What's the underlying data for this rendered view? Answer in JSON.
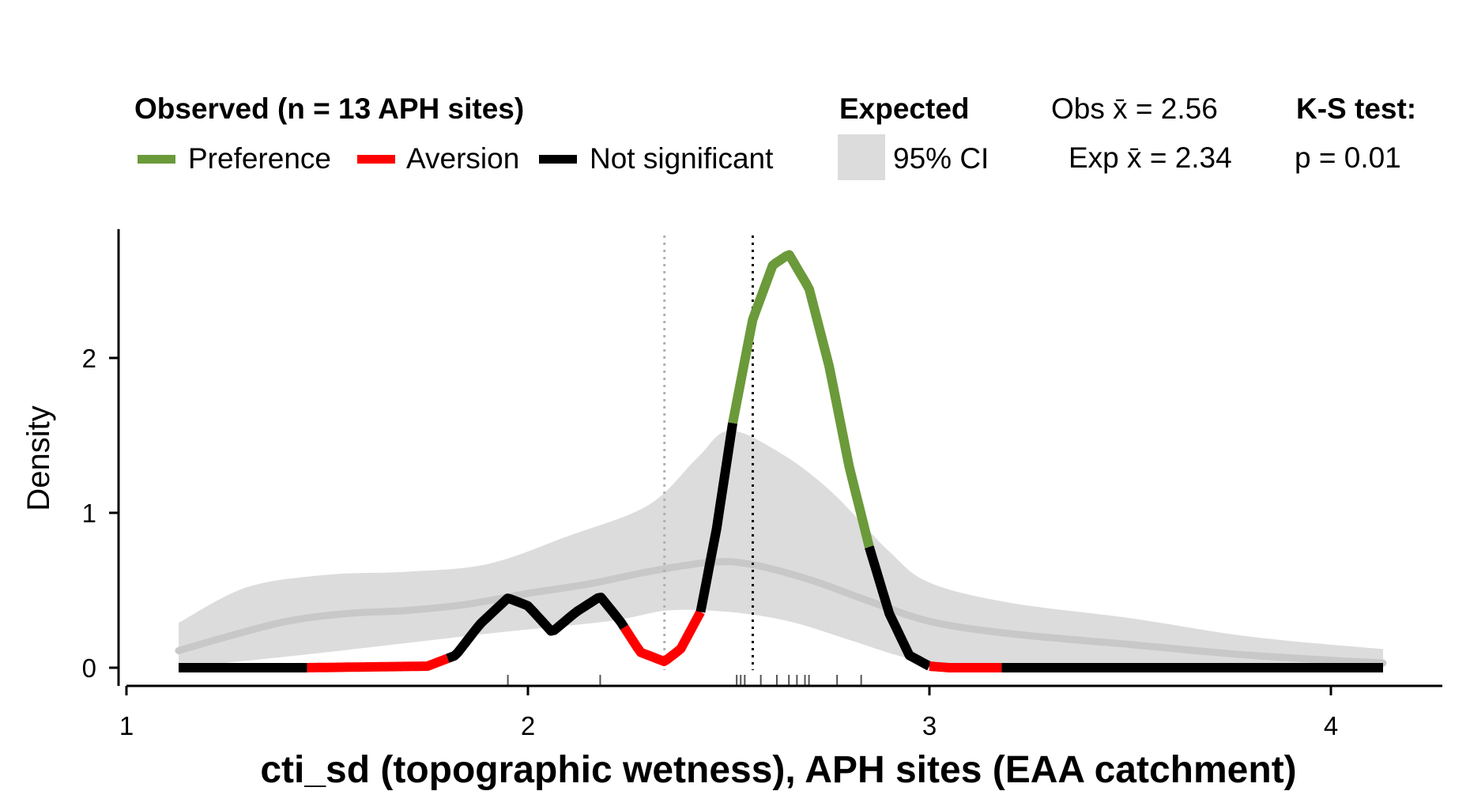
{
  "chart_data": {
    "type": "line",
    "title": "",
    "xlabel": "cti_sd (topographic wetness), APH sites (EAA catchment)",
    "ylabel": "Density",
    "xlim": [
      1,
      4.3
    ],
    "ylim": [
      0,
      2.8
    ],
    "x_ticks": [
      "1",
      "2",
      "3",
      "4"
    ],
    "y_ticks": [
      "0",
      "1",
      "2"
    ],
    "grid": false,
    "legend": {
      "placement": "top",
      "observed_title": "Observed (n = 13 APH sites)",
      "items": [
        {
          "label": "Preference",
          "color": "#6b9a3a"
        },
        {
          "label": "Aversion",
          "color": "#ff0000"
        },
        {
          "label": "Not significant",
          "color": "#000000"
        }
      ],
      "expected_title": "Expected",
      "expected_item": "95% CI",
      "ci_color": "#dcdcdc",
      "obs_mean_label": "Obs x̄ = 2.56",
      "exp_mean_label": "Exp x̄ = 2.34",
      "ks_title": "K-S test:",
      "ks_p": "p = 0.01"
    },
    "observed_mean": 2.56,
    "expected_mean": 2.34,
    "observed_density": [
      {
        "x": 1.13,
        "y": 0
      },
      {
        "x": 1.45,
        "y": 0
      },
      {
        "x": 1.75,
        "y": 0.01
      },
      {
        "x": 1.82,
        "y": 0.08
      },
      {
        "x": 1.88,
        "y": 0.28
      },
      {
        "x": 1.95,
        "y": 0.45
      },
      {
        "x": 2.0,
        "y": 0.4
      },
      {
        "x": 2.06,
        "y": 0.23
      },
      {
        "x": 2.12,
        "y": 0.36
      },
      {
        "x": 2.18,
        "y": 0.46
      },
      {
        "x": 2.23,
        "y": 0.3
      },
      {
        "x": 2.28,
        "y": 0.1
      },
      {
        "x": 2.34,
        "y": 0.04
      },
      {
        "x": 2.38,
        "y": 0.12
      },
      {
        "x": 2.43,
        "y": 0.36
      },
      {
        "x": 2.47,
        "y": 0.9
      },
      {
        "x": 2.51,
        "y": 1.58
      },
      {
        "x": 2.56,
        "y": 2.25
      },
      {
        "x": 2.61,
        "y": 2.6
      },
      {
        "x": 2.65,
        "y": 2.67
      },
      {
        "x": 2.7,
        "y": 2.45
      },
      {
        "x": 2.75,
        "y": 1.95
      },
      {
        "x": 2.8,
        "y": 1.3
      },
      {
        "x": 2.85,
        "y": 0.78
      },
      {
        "x": 2.9,
        "y": 0.35
      },
      {
        "x": 2.95,
        "y": 0.08
      },
      {
        "x": 3.0,
        "y": 0.01
      },
      {
        "x": 3.05,
        "y": 0
      },
      {
        "x": 3.18,
        "y": 0
      },
      {
        "x": 4.13,
        "y": 0
      }
    ],
    "segments": [
      {
        "from": 1.13,
        "to": 1.45,
        "status": "ns"
      },
      {
        "from": 1.45,
        "to": 1.8,
        "status": "aversion"
      },
      {
        "from": 1.8,
        "to": 2.24,
        "status": "ns"
      },
      {
        "from": 2.24,
        "to": 2.43,
        "status": "aversion"
      },
      {
        "from": 2.43,
        "to": 2.51,
        "status": "ns"
      },
      {
        "from": 2.51,
        "to": 2.85,
        "status": "preference"
      },
      {
        "from": 2.85,
        "to": 3.0,
        "status": "ns"
      },
      {
        "from": 3.0,
        "to": 3.18,
        "status": "aversion"
      },
      {
        "from": 3.18,
        "to": 4.13,
        "status": "ns"
      }
    ],
    "expected_mean_curve": [
      {
        "x": 1.13,
        "y": 0.11
      },
      {
        "x": 1.25,
        "y": 0.2
      },
      {
        "x": 1.4,
        "y": 0.3
      },
      {
        "x": 1.55,
        "y": 0.35
      },
      {
        "x": 1.7,
        "y": 0.37
      },
      {
        "x": 1.85,
        "y": 0.41
      },
      {
        "x": 2.0,
        "y": 0.48
      },
      {
        "x": 2.15,
        "y": 0.54
      },
      {
        "x": 2.3,
        "y": 0.62
      },
      {
        "x": 2.45,
        "y": 0.68
      },
      {
        "x": 2.55,
        "y": 0.67
      },
      {
        "x": 2.7,
        "y": 0.57
      },
      {
        "x": 2.85,
        "y": 0.43
      },
      {
        "x": 3.0,
        "y": 0.3
      },
      {
        "x": 3.2,
        "y": 0.22
      },
      {
        "x": 3.5,
        "y": 0.15
      },
      {
        "x": 3.8,
        "y": 0.08
      },
      {
        "x": 4.13,
        "y": 0.03
      }
    ],
    "ci_upper": [
      {
        "x": 1.13,
        "y": 0.29
      },
      {
        "x": 1.3,
        "y": 0.52
      },
      {
        "x": 1.5,
        "y": 0.6
      },
      {
        "x": 1.7,
        "y": 0.62
      },
      {
        "x": 1.9,
        "y": 0.67
      },
      {
        "x": 2.1,
        "y": 0.85
      },
      {
        "x": 2.3,
        "y": 1.05
      },
      {
        "x": 2.42,
        "y": 1.35
      },
      {
        "x": 2.5,
        "y": 1.53
      },
      {
        "x": 2.62,
        "y": 1.4
      },
      {
        "x": 2.75,
        "y": 1.15
      },
      {
        "x": 2.9,
        "y": 0.75
      },
      {
        "x": 3.0,
        "y": 0.55
      },
      {
        "x": 3.2,
        "y": 0.42
      },
      {
        "x": 3.5,
        "y": 0.32
      },
      {
        "x": 3.8,
        "y": 0.2
      },
      {
        "x": 4.13,
        "y": 0.12
      }
    ],
    "ci_lower": [
      {
        "x": 1.13,
        "y": 0
      },
      {
        "x": 1.5,
        "y": 0.1
      },
      {
        "x": 1.9,
        "y": 0.22
      },
      {
        "x": 2.2,
        "y": 0.3
      },
      {
        "x": 2.35,
        "y": 0.37
      },
      {
        "x": 2.5,
        "y": 0.36
      },
      {
        "x": 2.65,
        "y": 0.3
      },
      {
        "x": 2.8,
        "y": 0.18
      },
      {
        "x": 2.95,
        "y": 0.06
      },
      {
        "x": 3.1,
        "y": 0.01
      },
      {
        "x": 3.5,
        "y": 0
      },
      {
        "x": 4.13,
        "y": 0
      }
    ],
    "rug": [
      1.95,
      2.18,
      2.52,
      2.53,
      2.54,
      2.58,
      2.62,
      2.65,
      2.67,
      2.69,
      2.7,
      2.77,
      2.83
    ]
  }
}
